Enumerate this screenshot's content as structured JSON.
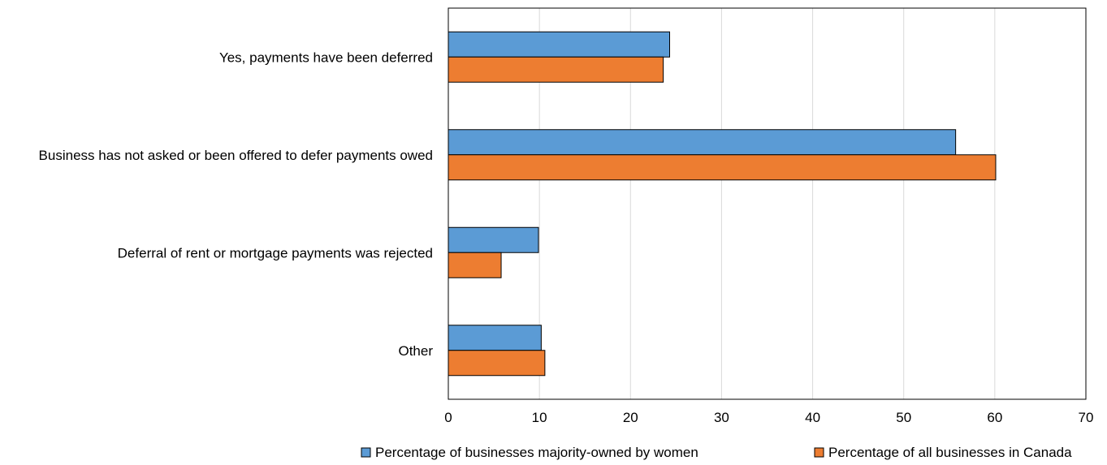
{
  "chart_data": {
    "type": "bar",
    "orientation": "horizontal",
    "categories": [
      "Yes, payments have been deferred",
      "Business has not asked or been offered to defer payments owed",
      "Deferral of rent or mortgage payments was rejected",
      "Other"
    ],
    "series": [
      {
        "name": "Percentage of businesses majority-owned by women",
        "color": "#5b9bd5",
        "values": [
          24.3,
          55.7,
          9.9,
          10.2
        ]
      },
      {
        "name": "Percentage of all businesses in Canada",
        "color": "#ed7d31",
        "values": [
          23.6,
          60.1,
          5.8,
          10.6
        ]
      }
    ],
    "xlim": [
      0,
      70
    ],
    "xticks": [
      "0",
      "10",
      "20",
      "30",
      "40",
      "50",
      "60",
      "70"
    ],
    "grid": true,
    "legend_position": "bottom"
  }
}
